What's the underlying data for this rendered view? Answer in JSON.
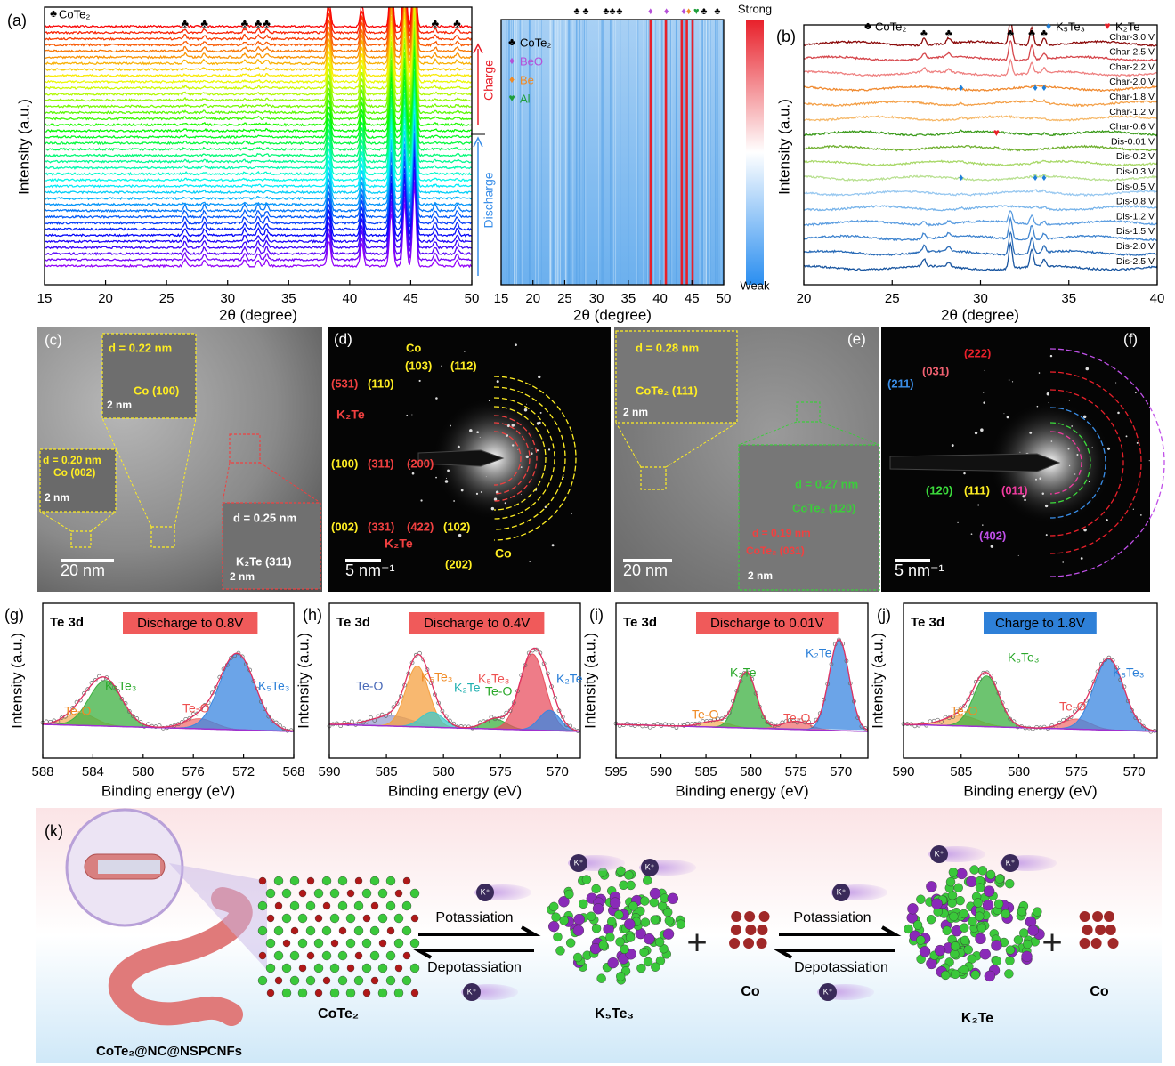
{
  "panels": {
    "a": {
      "label": "(a)",
      "ylabel": "Intensity (a.u.)",
      "xlabel": "2θ (degree)",
      "xlim": [
        15,
        50
      ],
      "xticks": [
        15,
        20,
        25,
        30,
        35,
        40,
        45,
        50
      ],
      "legend": "CoTe₂",
      "peaks": [
        26.5,
        28.1,
        31.4,
        32.5,
        33.2,
        47.0,
        48.8
      ],
      "strong_peaks": [
        38.3,
        41.0,
        43.4,
        44.5,
        45.3
      ],
      "charge": "Charge",
      "discharge": "Discharge"
    },
    "heatmap": {
      "xlabel": "2θ (degree)",
      "xlim": [
        15,
        50
      ],
      "xticks": [
        15,
        20,
        25,
        30,
        35,
        40,
        45,
        50
      ],
      "strong": "Strong",
      "weak": "Weak",
      "lines": [
        38.5,
        40.9,
        43.4,
        44.2,
        45.1
      ],
      "markers": [
        {
          "name": "CoTe₂",
          "color": "#000000",
          "symbol": "♣",
          "positions": [
            26.9,
            28.3,
            31.5,
            32.5,
            33.6,
            46.9,
            49.0
          ]
        },
        {
          "name": "BeO",
          "color": "#b44fd8",
          "symbol": "♦",
          "positions": [
            38.5,
            41.0,
            43.7
          ]
        },
        {
          "name": "Be",
          "color": "#f08a24",
          "symbol": "♦",
          "positions": [
            44.5
          ]
        },
        {
          "name": "Al",
          "color": "#1e9e3a",
          "symbol": "♥",
          "positions": [
            45.7
          ]
        }
      ]
    },
    "b": {
      "label": "(b)",
      "ylabel": "Intensity (a.u.)",
      "xlabel": "2θ (degree)",
      "xlim": [
        20,
        40
      ],
      "xticks": [
        20,
        25,
        30,
        35,
        40
      ],
      "legend": [
        {
          "name": "CoTe₂",
          "color": "#000000",
          "symbol": "♣",
          "positions": [
            26.8,
            28.2,
            31.7,
            32.9,
            33.6
          ]
        },
        {
          "name": "K₅Te₃",
          "color": "#1f7fd8",
          "symbol": "♦",
          "positions": [
            28.9,
            33.1,
            33.6
          ]
        },
        {
          "name": "K₂Te",
          "color": "#e8202a",
          "symbol": "♥",
          "positions": [
            30.9
          ]
        }
      ],
      "curves": [
        {
          "name": "Char-3.0 V",
          "color": "#8b0a0a"
        },
        {
          "name": "Char-2.5 V",
          "color": "#d6474c"
        },
        {
          "name": "Char-2.2 V",
          "color": "#ee8080"
        },
        {
          "name": "Char-2.0 V",
          "color": "#f08a30"
        },
        {
          "name": "Char-1.8 V",
          "color": "#f4a048"
        },
        {
          "name": "Char-1.2 V",
          "color": "#f6b868"
        },
        {
          "name": "Char-0.6 V",
          "color": "#3a9a1a"
        },
        {
          "name": "Dis-0.01 V",
          "color": "#70b030"
        },
        {
          "name": "Dis-0.2 V",
          "color": "#a8d868"
        },
        {
          "name": "Dis-0.3 V",
          "color": "#b8e090"
        },
        {
          "name": "Dis-0.5 V",
          "color": "#98c8f0"
        },
        {
          "name": "Dis-0.8 V",
          "color": "#78b4ea"
        },
        {
          "name": "Dis-1.2 V",
          "color": "#5a9ce0"
        },
        {
          "name": "Dis-1.5 V",
          "color": "#3f84cf"
        },
        {
          "name": "Dis-2.0 V",
          "color": "#2a6cb8"
        },
        {
          "name": "Dis-2.5 V",
          "color": "#1a56a0"
        }
      ]
    },
    "c": {
      "texts": [
        "(c)",
        "d = 0.22 nm",
        "Co (100)",
        "2 nm",
        "d = 0.20 nm",
        "Co (002)",
        "2 nm",
        "d = 0.25 nm",
        "K₂Te (311)",
        "2 nm",
        "20 nm"
      ]
    },
    "d": {
      "texts": [
        "(d)",
        "Co",
        "(103)",
        "(112)",
        "(531)",
        "(110)",
        "K₂Te",
        "(100)",
        "(311)",
        "(200)",
        "(002)",
        "(331)",
        "(422)",
        "(102)",
        "K₂Te",
        "(202)",
        "Co",
        "5 nm⁻¹"
      ]
    },
    "e": {
      "texts": [
        "(e)",
        "d = 0.28 nm",
        "CoTe₂ (111)",
        "2 nm",
        "d = 0.27 nm",
        "CoTe₂ (120)",
        "d = 0.19 nm",
        "CoTe₂ (031)",
        "2 nm",
        "20 nm"
      ]
    },
    "f": {
      "texts": [
        "(f)",
        "(222)",
        "(031)",
        "(211)",
        "(120)",
        "(111)",
        "(011)",
        "(402)",
        "5 nm⁻¹"
      ]
    },
    "xps": [
      {
        "label": "(g)",
        "core": "Te 3d",
        "title": "Discharge to 0.8V",
        "title_color": "#f05a5a",
        "xlabel": "Binding energy (eV)",
        "ylabel": "Intensity (a.u.)",
        "xlim": [
          588,
          568
        ],
        "xticks": [
          588,
          584,
          580,
          576,
          572,
          568
        ],
        "labels": [
          {
            "text": "Te-O",
            "color": "#f08a24"
          },
          {
            "text": "K₅Te₃",
            "color": "#2aa82a"
          },
          {
            "text": "Te-O",
            "color": "#ee5050"
          },
          {
            "text": "K₅Te₃",
            "color": "#2a7fd8"
          }
        ],
        "components": [
          {
            "color": "#f5b060",
            "center": 585,
            "height": 0.12,
            "width": 1.2
          },
          {
            "color": "#3cb040",
            "center": 583,
            "height": 0.45,
            "width": 1.3
          },
          {
            "color": "#f07070",
            "center": 575.5,
            "height": 0.1,
            "width": 1.2
          },
          {
            "color": "#3a86e0",
            "center": 572.5,
            "height": 0.75,
            "width": 1.4
          }
        ]
      },
      {
        "label": "(h)",
        "core": "Te 3d",
        "title": "Discharge to 0.4V",
        "title_color": "#f05a5a",
        "xlabel": "Binding energy (eV)",
        "ylabel": "Intensity (a.u.)",
        "xlim": [
          590,
          568
        ],
        "xticks": [
          590,
          585,
          580,
          575,
          570
        ],
        "labels": [
          {
            "text": "Te-O",
            "color": "#4a6ab8"
          },
          {
            "text": "K₅Te₃",
            "color": "#f08a24"
          },
          {
            "text": "K₂Te",
            "color": "#20b0b0"
          },
          {
            "text": "Te-O",
            "color": "#2aa82a"
          },
          {
            "text": "K₅Te₃",
            "color": "#ee5050"
          },
          {
            "text": "K₂Te",
            "color": "#2a7fd8"
          }
        ],
        "components": [
          {
            "color": "#9aa0d0",
            "center": 584.5,
            "height": 0.1,
            "width": 1.8
          },
          {
            "color": "#f5a040",
            "center": 582.3,
            "height": 0.6,
            "width": 1.0
          },
          {
            "color": "#40c8c8",
            "center": 581,
            "height": 0.15,
            "width": 1.0
          },
          {
            "color": "#3cb040",
            "center": 575.5,
            "height": 0.1,
            "width": 1.0
          },
          {
            "color": "#e85060",
            "center": 572.2,
            "height": 0.75,
            "width": 1.1
          },
          {
            "color": "#3a86e0",
            "center": 570.7,
            "height": 0.2,
            "width": 0.9
          }
        ]
      },
      {
        "label": "(i)",
        "core": "Te 3d",
        "title": "Discharge to 0.01V",
        "title_color": "#f05a5a",
        "xlabel": "Binding energy (eV)",
        "ylabel": "Intensity (a.u.)",
        "xlim": [
          595,
          567
        ],
        "xticks": [
          595,
          590,
          585,
          580,
          575,
          570
        ],
        "labels": [
          {
            "text": "Te-O",
            "color": "#f08a24"
          },
          {
            "text": "K₂Te",
            "color": "#2aa82a"
          },
          {
            "text": "Te-O",
            "color": "#ee5050"
          },
          {
            "text": "K₂Te",
            "color": "#2a7fd8"
          }
        ],
        "components": [
          {
            "color": "#f5b060",
            "center": 584,
            "height": 0.06,
            "width": 1.5
          },
          {
            "color": "#3cb040",
            "center": 580.5,
            "height": 0.55,
            "width": 1.1
          },
          {
            "color": "#f07070",
            "center": 575,
            "height": 0.08,
            "width": 1.5
          },
          {
            "color": "#3a86e0",
            "center": 570.2,
            "height": 0.9,
            "width": 1.1
          }
        ]
      },
      {
        "label": "(j)",
        "core": "Te 3d",
        "title": "Charge to 1.8V",
        "title_color": "#2e80d8",
        "xlabel": "Binding energy (eV)",
        "ylabel": "Intensity (a.u.)",
        "xlim": [
          590,
          568
        ],
        "xticks": [
          590,
          585,
          580,
          575,
          570
        ],
        "labels": [
          {
            "text": "Te-O",
            "color": "#f08a24"
          },
          {
            "text": "K₅Te₃",
            "color": "#2aa82a"
          },
          {
            "text": "Te-O",
            "color": "#ee5050"
          },
          {
            "text": "K₅Te₃",
            "color": "#2a7fd8"
          }
        ],
        "components": [
          {
            "color": "#f5b060",
            "center": 585,
            "height": 0.1,
            "width": 1.5
          },
          {
            "color": "#3cb040",
            "center": 582.8,
            "height": 0.5,
            "width": 1.1
          },
          {
            "color": "#f07070",
            "center": 575,
            "height": 0.1,
            "width": 1.2
          },
          {
            "color": "#3a86e0",
            "center": 572.2,
            "height": 0.7,
            "width": 1.3
          }
        ]
      }
    ],
    "k": {
      "label": "(k)",
      "potassiation": "Potassiation",
      "depotassiation": "Depotassiation",
      "ion": "K⁺",
      "cote2": "CoTe₂",
      "k5te3": "K₅Te₃",
      "co": "Co",
      "k2te": "K₂Te",
      "fiber": "CoTe₂@NC@NSPCNFs"
    }
  }
}
